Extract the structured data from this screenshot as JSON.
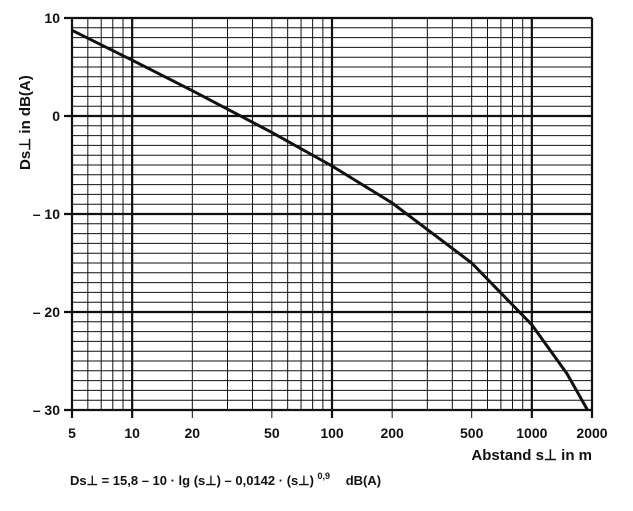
{
  "chart_data": {
    "type": "line",
    "title": "",
    "xlabel": "Abstand s⊥ in m",
    "ylabel": "Ds⊥ in dB(A)",
    "xscale": "log",
    "xlim": [
      5,
      2000
    ],
    "ylim": [
      -30,
      10
    ],
    "xticks": [
      5,
      10,
      20,
      50,
      100,
      200,
      500,
      1000,
      2000
    ],
    "xtick_labels": [
      "5",
      "10",
      "20",
      "50",
      "100",
      "200",
      "500",
      "1000",
      "2000"
    ],
    "yticks": [
      10,
      0,
      -10,
      -20,
      -30
    ],
    "ytick_labels": [
      "10",
      "0",
      "– 10",
      "– 20",
      "– 30"
    ],
    "grid": true,
    "series": [
      {
        "name": "Ds⊥",
        "x": [
          5,
          10,
          20,
          50,
          100,
          200,
          500,
          1000,
          1500,
          1900
        ],
        "y": [
          8.75,
          5.69,
          2.58,
          -1.67,
          -5.1,
          -8.88,
          -15.0,
          -21.3,
          -26.3,
          -30.0
        ]
      }
    ],
    "formula": {
      "lhs": "Ds⊥",
      "rhs": "= 15,8 – 10 · lg (s⊥) – 0,0142 · (s⊥)",
      "exponent": "0,9",
      "unit": "dB(A)"
    }
  }
}
